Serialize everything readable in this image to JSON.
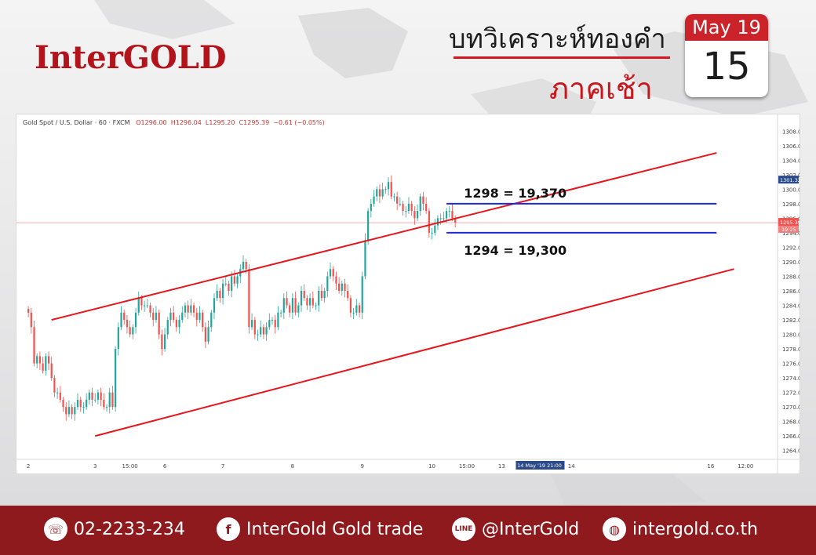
{
  "header": {
    "brand": "InterGOLD",
    "title_line1": "บทวิเคราะห์ทองคำ",
    "title_line2": "ภาคเช้า",
    "calendar_month": "May 19",
    "calendar_day": "15"
  },
  "chart_data": {
    "type": "candlestick",
    "symbol_line": "Gold Spot / U.S. Dollar · 60 · FXCM",
    "ohlc": {
      "o": "O1296.00",
      "h": "H1296.04",
      "l": "L1295.20",
      "c": "C1295.39",
      "chg": "−0.61 (−0.05%)"
    },
    "y_range": [
      1263,
      1309
    ],
    "y_ticks": [
      "1308.00",
      "1306.00",
      "1304.00",
      "1302.00",
      "1300.00",
      "1298.00",
      "1296.00",
      "1294.00",
      "1292.00",
      "1290.00",
      "1288.00",
      "1286.00",
      "1284.00",
      "1282.00",
      "1280.00",
      "1278.00",
      "1276.00",
      "1274.00",
      "1272.00",
      "1270.00",
      "1268.00",
      "1266.00",
      "1264.00"
    ],
    "x_ticks": [
      {
        "label": "2",
        "x": 0
      },
      {
        "label": "3",
        "x": 23
      },
      {
        "label": "15:00",
        "x": 35
      },
      {
        "label": "6",
        "x": 47
      },
      {
        "label": "7",
        "x": 67
      },
      {
        "label": "8",
        "x": 91
      },
      {
        "label": "9",
        "x": 115
      },
      {
        "label": "10",
        "x": 139
      },
      {
        "label": "15:00",
        "x": 151
      },
      {
        "label": "13",
        "x": 163
      },
      {
        "label": "14",
        "x": 187
      },
      {
        "label": "16",
        "x": 235
      },
      {
        "label": "12:00",
        "x": 247
      }
    ],
    "x_range": [
      -3,
      258
    ],
    "current_price": "1295.39",
    "current_price_value": 1295.39,
    "current_time": "19:25",
    "marker_price": "1301.32",
    "marker_price_value": 1301.32,
    "cursor_date": "14 May '19  21:00",
    "closes": [
      1283,
      1281,
      1276,
      1277,
      1276,
      1275,
      1277,
      1276,
      1274,
      1272,
      1272,
      1271,
      1270,
      1269,
      1270,
      1269,
      1270,
      1271,
      1270,
      1270,
      1271,
      1272,
      1271,
      1271,
      1272,
      1271,
      1270,
      1270,
      1272,
      1270,
      1278,
      1281,
      1283,
      1282,
      1281,
      1280,
      1281,
      1283,
      1285,
      1284,
      1284,
      1284,
      1283,
      1282,
      1283,
      1280,
      1278,
      1280,
      1282,
      1283,
      1282,
      1281,
      1282,
      1283,
      1284,
      1283,
      1284,
      1283,
      1282,
      1283,
      1281,
      1279,
      1281,
      1283,
      1285,
      1286,
      1285,
      1287,
      1287,
      1286,
      1288,
      1287,
      1288,
      1289,
      1290,
      1289,
      1281,
      1282,
      1280,
      1280,
      1281,
      1280,
      1281,
      1282,
      1282,
      1281,
      1283,
      1283,
      1285,
      1284,
      1283,
      1285,
      1283,
      1284,
      1286,
      1285,
      1284,
      1285,
      1284,
      1284,
      1286,
      1285,
      1286,
      1288,
      1289,
      1288,
      1287,
      1286,
      1287,
      1286,
      1285,
      1283,
      1283,
      1284,
      1283,
      1288,
      1293,
      1297,
      1298,
      1299,
      1300,
      1299,
      1300,
      1300,
      1301,
      1299,
      1299,
      1298,
      1298,
      1297,
      1297,
      1298,
      1297,
      1296,
      1297,
      1299,
      1298,
      1297,
      1294,
      1294,
      1295,
      1296,
      1296,
      1296,
      1297,
      1297,
      1296,
      1295.4
    ],
    "annotations": [
      {
        "text": "1298 = 19,370",
        "price": 1298
      },
      {
        "text": "1294 = 19,300",
        "price": 1294
      }
    ],
    "channel": {
      "upper": [
        [
          8,
          1282
        ],
        [
          237,
          1305
        ]
      ],
      "lower": [
        [
          23,
          1266
        ],
        [
          243,
          1289
        ]
      ]
    }
  },
  "footer": {
    "phone": "02-2233-234",
    "facebook": "InterGold Gold trade",
    "line": "@InterGold",
    "web": "intergold.co.th"
  },
  "icons": {
    "phone": "phone-icon",
    "facebook": "facebook-icon",
    "line": "line-icon",
    "web": "globe-icon"
  },
  "colors": {
    "brand_red": "#b3141b",
    "up": "#26a69a",
    "down": "#ef5350",
    "channel": "#e8141b",
    "level": "#1c2ad8",
    "footer": "#8f1a1e"
  }
}
